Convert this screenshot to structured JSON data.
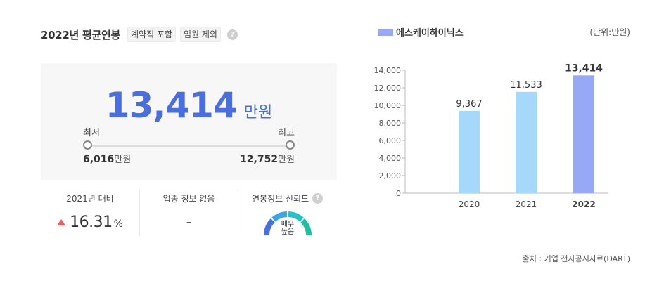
{
  "header": {
    "title": "2022년 평균연봉",
    "chip_contract": "계약직 포함",
    "chip_exec": "임원 제외",
    "help_glyph": "?"
  },
  "salary": {
    "average": "13,414",
    "unit": "만원",
    "min_label": "최저",
    "max_label": "최고",
    "min_value": "6,016",
    "max_value": "12,752",
    "value_unit": "만원"
  },
  "stats": {
    "growth_label": "2021년 대비",
    "growth_value": "16.31",
    "growth_unit": "%",
    "industry_label": "업종 정보 없음",
    "industry_value": "-",
    "reliability_label": "연봉정보 신뢰도",
    "reliability_line1": "매우",
    "reliability_line2": "높음"
  },
  "legend": {
    "company": "에스케이하이닉스",
    "unit": "(단위:만원)"
  },
  "source": "출처 : 기업 전자공시자료(DART)",
  "colors": {
    "accent": "#4a6ede",
    "bar_past": "#a6d8fb",
    "bar_current": "#97a9f6",
    "up_arrow": "#ef5a5a",
    "gauge_segments": [
      "#4a6ede",
      "#3fa6e5",
      "#28c1c6",
      "#1fbfa2"
    ]
  },
  "chart_data": {
    "type": "bar",
    "categories": [
      "2020",
      "2021",
      "2022"
    ],
    "values": [
      9367,
      11533,
      13414
    ],
    "labels": [
      "9,367",
      "11,533",
      "13,414"
    ],
    "highlight_index": 2,
    "ylim": [
      0,
      14000
    ],
    "yticks": [
      0,
      2000,
      4000,
      6000,
      8000,
      10000,
      12000,
      14000
    ],
    "ytick_labels": [
      "0",
      "2,000",
      "4,000",
      "6,000",
      "8,000",
      "10,000",
      "12,000",
      "14,000"
    ],
    "grid": false,
    "title": "",
    "xlabel": "",
    "ylabel": ""
  }
}
